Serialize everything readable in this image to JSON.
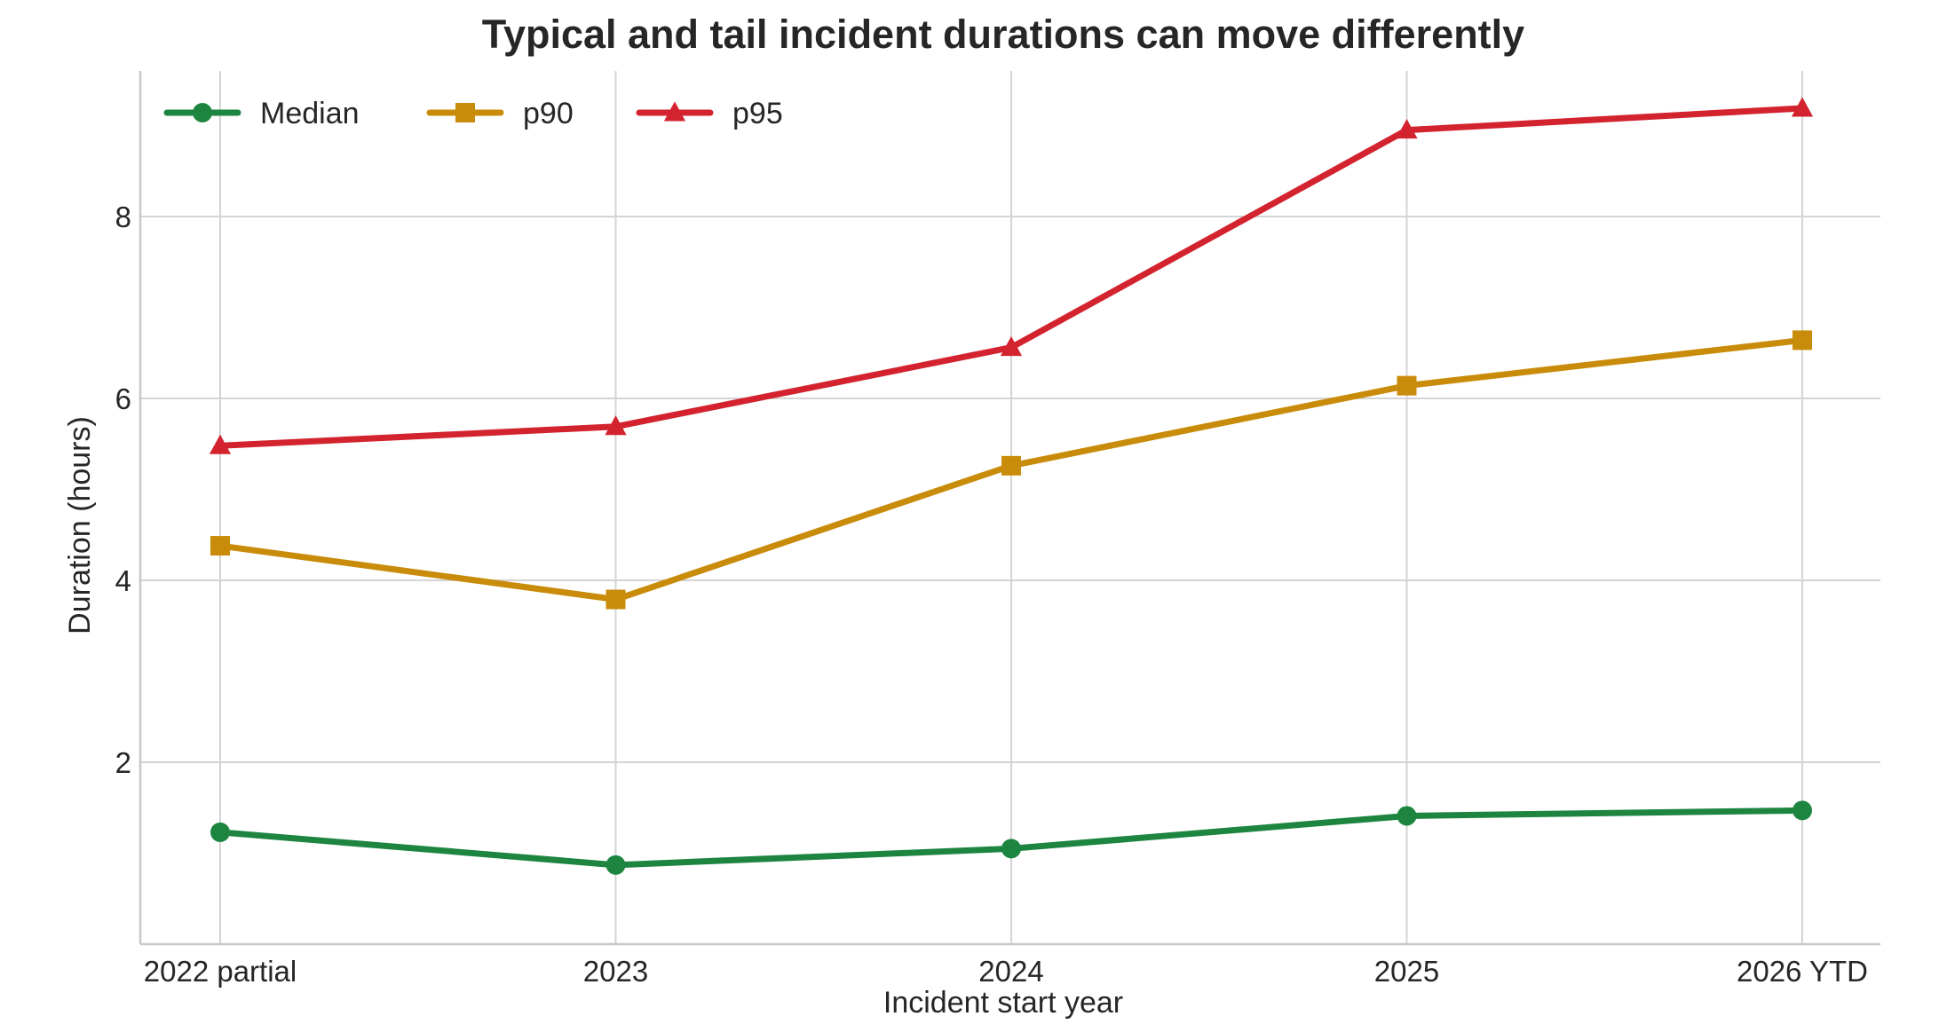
{
  "chart_data": {
    "type": "line",
    "title": "Typical and tail incident durations can move differently",
    "xlabel": "Incident start year",
    "ylabel": "Duration (hours)",
    "categories": [
      "2022 partial",
      "2023",
      "2024",
      "2025",
      "2026 YTD"
    ],
    "ylim": [
      0.0,
      9.6
    ],
    "yticks": [
      2,
      4,
      6,
      8
    ],
    "grid": true,
    "legend_position": "top-left",
    "series": [
      {
        "name": "Median",
        "color": "#1e8540",
        "marker": "circle",
        "values": [
          1.23,
          0.87,
          1.05,
          1.41,
          1.47
        ]
      },
      {
        "name": "p90",
        "color": "#c98c0a",
        "marker": "square",
        "values": [
          4.38,
          3.79,
          5.26,
          6.14,
          6.64
        ]
      },
      {
        "name": "p95",
        "color": "#d3232e",
        "marker": "triangle",
        "values": [
          5.48,
          5.69,
          6.56,
          8.95,
          9.19
        ]
      }
    ]
  }
}
